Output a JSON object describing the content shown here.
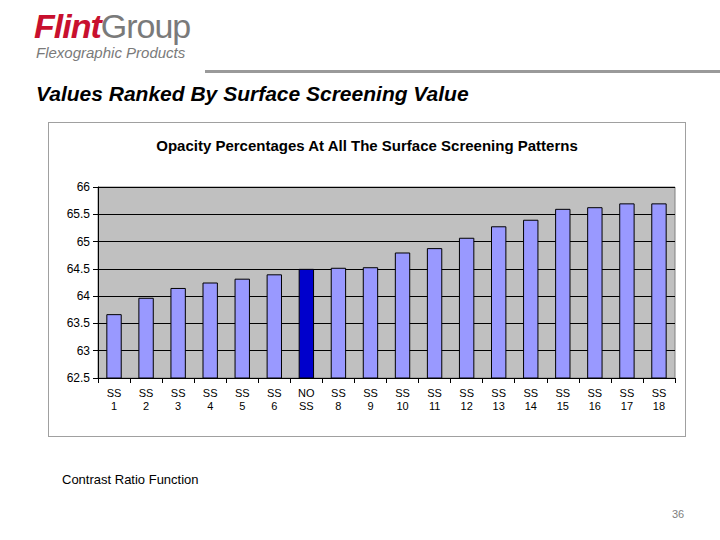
{
  "header": {
    "brand": [
      "Flint",
      "Group"
    ],
    "subtitle": "Flexographic Products",
    "title": "Values Ranked By Surface Screening Value"
  },
  "chart_data": {
    "type": "bar",
    "title": "Opacity Percentages At All The Surface Screening Patterns",
    "categories": [
      "SS 1",
      "SS 2",
      "SS 3",
      "SS 4",
      "SS 5",
      "SS 6",
      "NO SS",
      "SS 8",
      "SS 9",
      "SS 10",
      "SS 11",
      "SS 12",
      "SS 13",
      "SS 14",
      "SS 15",
      "SS 16",
      "SS 17",
      "SS 18"
    ],
    "values": [
      63.67,
      63.97,
      64.15,
      64.25,
      64.32,
      64.4,
      64.5,
      64.52,
      64.53,
      64.8,
      64.88,
      65.07,
      65.28,
      65.4,
      65.6,
      65.63,
      65.7,
      65.7
    ],
    "colors": [
      "#9999ff",
      "#9999ff",
      "#9999ff",
      "#9999ff",
      "#9999ff",
      "#9999ff",
      "#0000cc",
      "#9999ff",
      "#9999ff",
      "#9999ff",
      "#9999ff",
      "#9999ff",
      "#9999ff",
      "#9999ff",
      "#9999ff",
      "#9999ff",
      "#9999ff",
      "#9999ff"
    ],
    "ylim": [
      62.5,
      66
    ],
    "yticks": [
      62.5,
      63,
      63.5,
      64,
      64.5,
      65,
      65.5,
      66
    ],
    "grid": true
  },
  "footer": {
    "caption": "Contrast Ratio Function",
    "page_number": 36
  }
}
